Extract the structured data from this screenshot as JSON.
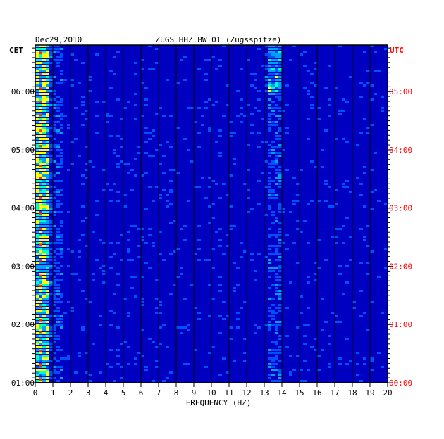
{
  "chart_data": {
    "type": "heatmap",
    "title": "ZUGS HHZ BW 01 (Zugsspitze)",
    "date": "Dec29,2010",
    "left_timezone": "CET",
    "right_timezone": "UTC",
    "xlabel": "FREQUENCY (HZ)",
    "xlim": [
      0,
      20
    ],
    "x_ticks": [
      "0",
      "1",
      "2",
      "3",
      "4",
      "5",
      "6",
      "7",
      "8",
      "9",
      "10",
      "11",
      "12",
      "13",
      "14",
      "15",
      "16",
      "17",
      "18",
      "19",
      "20"
    ],
    "y_ticks_left": [
      "06:00",
      "05:00",
      "04:00",
      "03:00",
      "02:00",
      "01:00"
    ],
    "y_ticks_right": [
      "05:00",
      "04:00",
      "03:00",
      "02:00",
      "01:00",
      "00:00"
    ],
    "y_tick_hours": [
      6,
      5,
      4,
      3,
      2,
      1
    ],
    "ylim_hours_cet": [
      1,
      6.8
    ],
    "colors": {
      "background": "#0000c0",
      "frame": "#000000",
      "utc_label": "#ff0000",
      "gridline": "#000000"
    }
  }
}
